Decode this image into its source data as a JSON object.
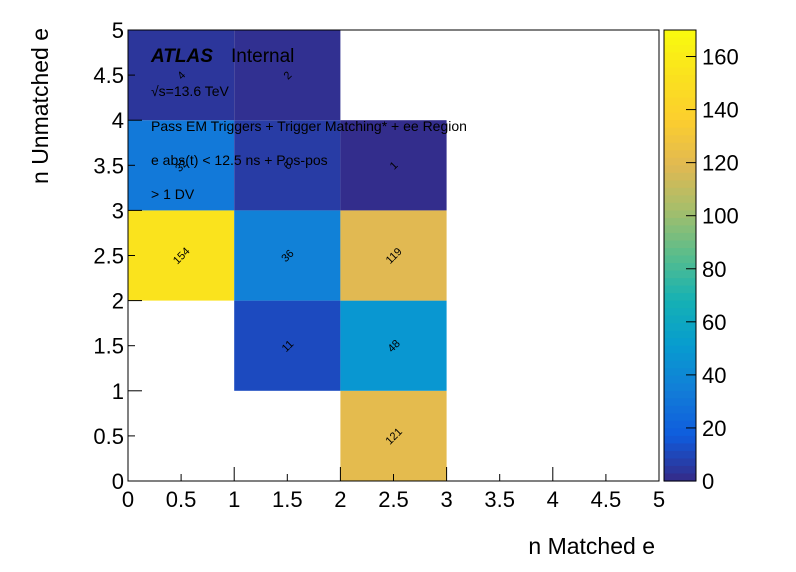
{
  "chart_data": {
    "type": "heatmap",
    "xlabel": "n Matched e",
    "ylabel": "n Unmatched e",
    "xlim": [
      0,
      5
    ],
    "ylim": [
      0,
      5
    ],
    "x_ticks": [
      "0",
      "0.5",
      "1",
      "1.5",
      "2",
      "2.5",
      "3",
      "3.5",
      "4",
      "4.5",
      "5"
    ],
    "y_ticks": [
      "0",
      "0.5",
      "1",
      "1.5",
      "2",
      "2.5",
      "3",
      "3.5",
      "4",
      "4.5",
      "5"
    ],
    "bin_width": 1,
    "cells": [
      {
        "x": 0,
        "y": 0,
        "value": null
      },
      {
        "x": 0,
        "y": 1,
        "value": null
      },
      {
        "x": 0,
        "y": 2,
        "value": 154
      },
      {
        "x": 0,
        "y": 3,
        "value": 32
      },
      {
        "x": 0,
        "y": 4,
        "value": 4
      },
      {
        "x": 1,
        "y": 1,
        "value": 11
      },
      {
        "x": 1,
        "y": 2,
        "value": 36
      },
      {
        "x": 1,
        "y": 3,
        "value": 6
      },
      {
        "x": 1,
        "y": 4,
        "value": 2
      },
      {
        "x": 2,
        "y": 0,
        "value": 121
      },
      {
        "x": 2,
        "y": 1,
        "value": 48
      },
      {
        "x": 2,
        "y": 2,
        "value": 119
      },
      {
        "x": 2,
        "y": 3,
        "value": 1
      }
    ],
    "colorbar": {
      "min": 0,
      "max": 170,
      "ticks": [
        "0",
        "20",
        "40",
        "60",
        "80",
        "100",
        "120",
        "140",
        "160"
      ]
    },
    "annotations": {
      "experiment": "ATLAS",
      "status": "Internal",
      "energy": "√s=13.6 TeV",
      "line1": "Pass EM Triggers + Trigger Matching* + ee Region",
      "line2": "e abs(t) < 12.5 ns + Pos-pos",
      "line3": "> 1 DV"
    }
  }
}
